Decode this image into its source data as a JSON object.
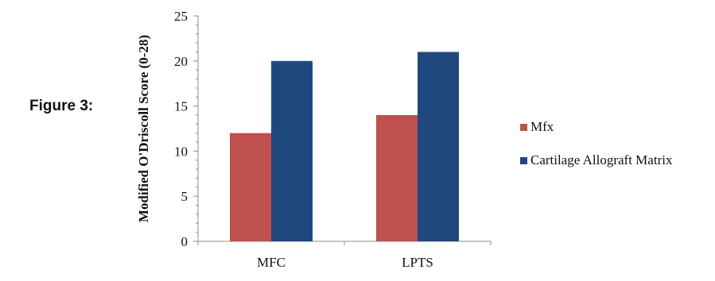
{
  "figure_label": "Figure 3:",
  "chart_data": {
    "type": "bar",
    "categories": [
      "MFC",
      "LPTS"
    ],
    "series": [
      {
        "name": "Mfx",
        "values": [
          12,
          14
        ],
        "color": "#c0504d"
      },
      {
        "name": "Cartilage Allograft Matrix",
        "values": [
          20,
          21
        ],
        "color": "#1f497d"
      }
    ],
    "title": "",
    "xlabel": "",
    "ylabel": "Modified O'Driscoll Score (0-28)",
    "ylim": [
      0,
      25
    ],
    "yticks": [
      "0",
      "5",
      "10",
      "15",
      "20",
      "25"
    ],
    "grid": false,
    "legend_position": "right"
  }
}
